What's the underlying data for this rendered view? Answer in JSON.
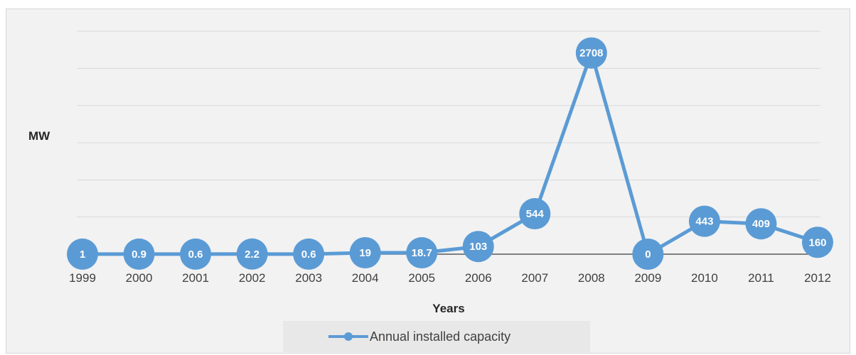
{
  "chart_data": {
    "type": "line",
    "title": "",
    "xlabel": "Years",
    "ylabel": "MW",
    "categories": [
      "1999",
      "2000",
      "2001",
      "2002",
      "2003",
      "2004",
      "2005",
      "2006",
      "2007",
      "2008",
      "2009",
      "2010",
      "2011",
      "2012"
    ],
    "series": [
      {
        "name": "Annual installed capacity",
        "values": [
          1,
          0.9,
          0.6,
          2.2,
          0.6,
          19,
          18.7,
          103,
          544,
          2708,
          0,
          443,
          409,
          160
        ],
        "labels": [
          "1",
          "0.9",
          "0.6",
          "2.2",
          "0.6",
          "19",
          "18.7",
          "103",
          "544",
          "2708",
          "0",
          "443",
          "409",
          "160"
        ]
      }
    ],
    "ylim": [
      0,
      3000
    ],
    "grid": true,
    "legend_position": "bottom",
    "colors": {
      "series": "#5b9bd5",
      "grid": "#d9d9d9",
      "axis": "#595959",
      "background": "#f2f2f2"
    }
  }
}
